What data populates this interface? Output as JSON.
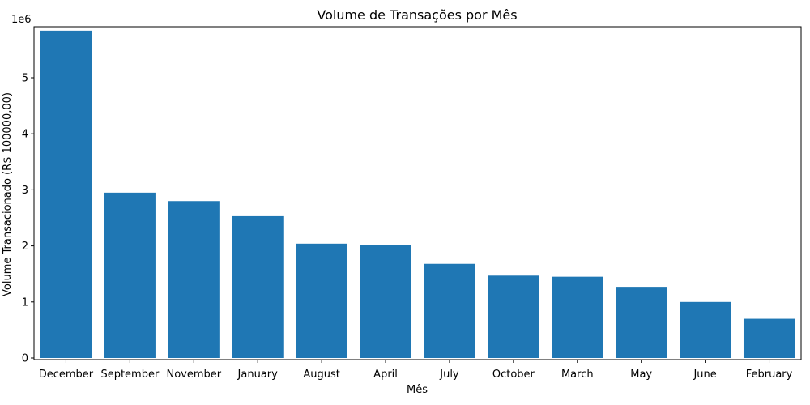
{
  "chart_data": {
    "type": "bar",
    "title": "Volume de Transações por Mês",
    "xlabel": "Mês",
    "ylabel": "Volume Transacionado (R$ 100000,00)",
    "y_offset_label": "1e6",
    "y_multiplier": 1000000,
    "categories": [
      "December",
      "September",
      "November",
      "January",
      "August",
      "April",
      "July",
      "October",
      "March",
      "May",
      "June",
      "February"
    ],
    "values": [
      5840000,
      2950000,
      2800000,
      2530000,
      2040000,
      2010000,
      1680000,
      1470000,
      1450000,
      1270000,
      1000000,
      700000
    ],
    "ylim": [
      0,
      5950000
    ],
    "yticks": [
      0,
      1000000,
      2000000,
      3000000,
      4000000,
      5000000
    ],
    "ytick_labels": [
      "0",
      "1",
      "2",
      "3",
      "4",
      "5"
    ],
    "bar_color": "#1f77b4",
    "grid": false,
    "legend": "none"
  }
}
